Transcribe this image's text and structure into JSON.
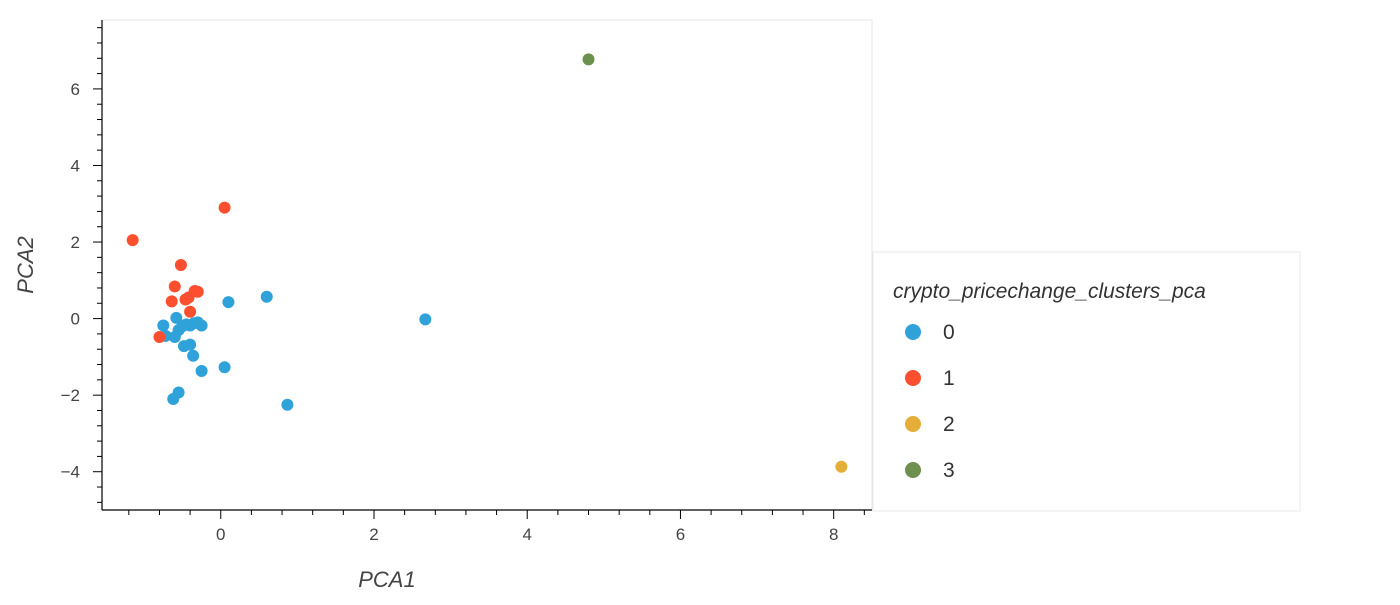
{
  "chart_data": {
    "type": "scatter",
    "title": "",
    "xlabel": "PCA1",
    "ylabel": "PCA2",
    "xlim": [
      -1.55,
      8.5
    ],
    "ylim": [
      -5.0,
      7.8
    ],
    "xticks": [
      0,
      2,
      4,
      6,
      8
    ],
    "yticks": [
      -4,
      -2,
      0,
      2,
      4,
      6
    ],
    "tick_labels": {
      "x": [
        "0",
        "2",
        "4",
        "6",
        "8"
      ],
      "y": [
        "−4",
        "−2",
        "0",
        "2",
        "4",
        "6"
      ]
    },
    "grid": false,
    "legend": {
      "title": "crypto_pricechange_clusters_pca",
      "placement": "right"
    },
    "series": [
      {
        "name": "0",
        "color": "#30a2da",
        "points": [
          [
            -0.75,
            -0.18
          ],
          [
            -0.72,
            -0.45
          ],
          [
            -0.6,
            -0.48
          ],
          [
            -0.58,
            0.02
          ],
          [
            -0.55,
            -0.3
          ],
          [
            -0.5,
            -0.2
          ],
          [
            -0.45,
            -0.15
          ],
          [
            -0.4,
            -0.18
          ],
          [
            -0.35,
            -0.12
          ],
          [
            -0.3,
            -0.1
          ],
          [
            -0.25,
            -0.18
          ],
          [
            -0.48,
            -0.72
          ],
          [
            -0.4,
            -0.68
          ],
          [
            -0.36,
            -0.97
          ],
          [
            -0.25,
            -1.37
          ],
          [
            0.05,
            -1.27
          ],
          [
            -0.55,
            -1.93
          ],
          [
            -0.62,
            -2.1
          ],
          [
            0.1,
            0.43
          ],
          [
            0.6,
            0.57
          ],
          [
            0.87,
            -2.25
          ],
          [
            2.67,
            -0.02
          ]
        ]
      },
      {
        "name": "1",
        "color": "#fc4f30",
        "points": [
          [
            -1.15,
            2.05
          ],
          [
            0.05,
            2.9
          ],
          [
            -0.52,
            1.4
          ],
          [
            -0.6,
            0.84
          ],
          [
            -0.64,
            0.45
          ],
          [
            -0.46,
            0.5
          ],
          [
            -0.42,
            0.55
          ],
          [
            -0.34,
            0.72
          ],
          [
            -0.3,
            0.7
          ],
          [
            -0.4,
            0.18
          ],
          [
            -0.8,
            -0.48
          ]
        ]
      },
      {
        "name": "2",
        "color": "#e5ae38",
        "points": [
          [
            8.1,
            -3.87
          ]
        ]
      },
      {
        "name": "3",
        "color": "#6d904f",
        "points": [
          [
            4.8,
            6.77
          ]
        ]
      }
    ]
  }
}
